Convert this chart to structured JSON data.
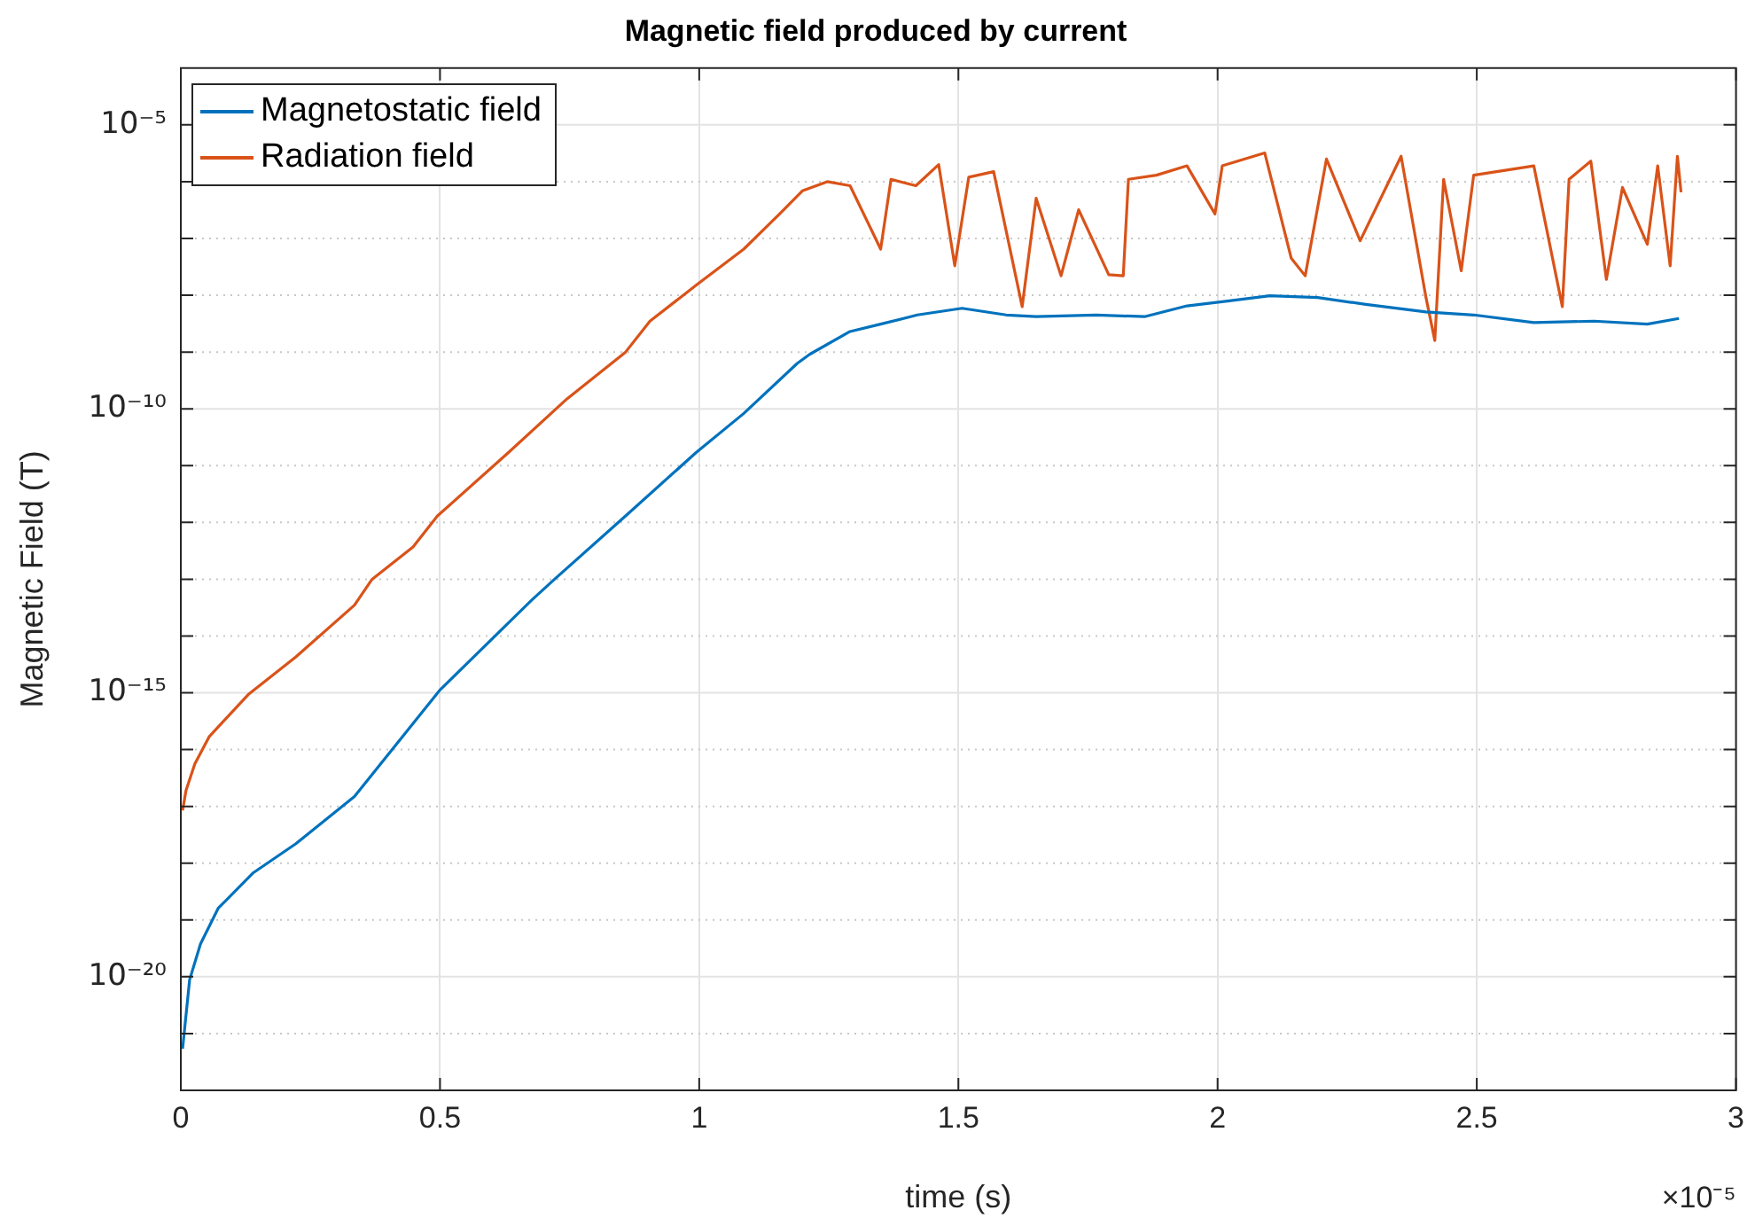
{
  "chart_data": {
    "type": "line",
    "title": "Magnetic field produced by current",
    "xlabel": "time (s)",
    "ylabel": "Magnetic Field (T)",
    "annotations": [
      "×10⁻⁵"
    ],
    "xlim": [
      0,
      3
    ],
    "xticks": [
      0,
      0.5,
      1,
      1.5,
      2,
      2.5,
      3
    ],
    "ylim": [
      1e-22,
      0.0001
    ],
    "yticks": [
      {
        "value": 1e-21,
        "label": null
      },
      {
        "value": 1e-20,
        "label": "10⁻²⁰"
      },
      {
        "value": 1e-19,
        "label": null
      },
      {
        "value": 1e-18,
        "label": null
      },
      {
        "value": 1e-17,
        "label": null
      },
      {
        "value": 1e-16,
        "label": null
      },
      {
        "value": 1e-15,
        "label": "10⁻¹⁵"
      },
      {
        "value": 1e-14,
        "label": null
      },
      {
        "value": 1e-13,
        "label": null
      },
      {
        "value": 1e-12,
        "label": null
      },
      {
        "value": 1e-11,
        "label": null
      },
      {
        "value": 1e-10,
        "label": "10⁻¹⁰"
      },
      {
        "value": 1e-09,
        "label": null
      },
      {
        "value": 1e-08,
        "label": null
      },
      {
        "value": 1e-07,
        "label": null
      },
      {
        "value": 1e-06,
        "label": null
      },
      {
        "value": 1e-05,
        "label": "10⁻⁵"
      }
    ],
    "log": "y",
    "grid": true,
    "legend": "top left",
    "marker": "none",
    "line_style": "solid",
    "series": [
      {
        "name": "Magnetostatic field",
        "color": "#0072bd",
        "x": [
          0.0034,
          0.017,
          0.038,
          0.072,
          0.14,
          0.222,
          0.335,
          0.499,
          0.677,
          0.721,
          0.858,
          0.994,
          1.086,
          1.189,
          1.213,
          1.291,
          1.35,
          1.421,
          1.507,
          1.592,
          1.65,
          1.766,
          1.859,
          1.941,
          2.019,
          2.101,
          2.193,
          2.286,
          2.402,
          2.494,
          2.61,
          2.726,
          2.829,
          2.89
        ],
        "values": [
          5.4e-22,
          8.9e-21,
          3.8e-20,
          1.6e-19,
          6.8e-19,
          2.2e-18,
          1.5e-17,
          1.1e-15,
          4.3e-14,
          1e-13,
          1.3e-12,
          1.7e-11,
          8.3e-11,
          6.3e-10,
          9.1e-10,
          2.3e-09,
          3.1e-09,
          4.5e-09,
          5.9e-09,
          4.5e-09,
          4.2e-09,
          4.5e-09,
          4.2e-09,
          6.5e-09,
          7.9e-09,
          9.8e-09,
          9.1e-09,
          6.9e-09,
          5.1e-09,
          4.5e-09,
          3.3e-09,
          3.5e-09,
          3.1e-09,
          3.9e-09
        ]
      },
      {
        "name": "Radiation field",
        "color": "#d95319",
        "x": [
          0.0034,
          0.01,
          0.027,
          0.055,
          0.13,
          0.222,
          0.335,
          0.369,
          0.448,
          0.495,
          0.632,
          0.745,
          0.858,
          0.905,
          0.994,
          1.086,
          1.155,
          1.199,
          1.247,
          1.291,
          1.35,
          1.37,
          1.418,
          1.462,
          1.493,
          1.52,
          1.568,
          1.623,
          1.65,
          1.698,
          1.732,
          1.79,
          1.818,
          1.828,
          1.882,
          1.941,
          1.995,
          2.009,
          2.091,
          2.142,
          2.169,
          2.21,
          2.275,
          2.354,
          2.402,
          2.419,
          2.436,
          2.47,
          2.494,
          2.61,
          2.665,
          2.678,
          2.72,
          2.75,
          2.781,
          2.829,
          2.849,
          2.873,
          2.887,
          2.894
        ],
        "values": [
          8.5e-18,
          1.9e-17,
          5.6e-17,
          1.7e-16,
          9.3e-16,
          4.3e-15,
          3.5e-14,
          1e-13,
          3.7e-13,
          1.3e-12,
          1.7e-11,
          1.5e-10,
          1e-09,
          3.5e-09,
          1.5e-08,
          6.5e-08,
          2.7e-07,
          6.9e-07,
          1e-06,
          8.5e-07,
          6.5e-08,
          1.1e-06,
          8.5e-07,
          2e-06,
          3.3e-08,
          1.2e-06,
          1.5e-06,
          6.3e-09,
          5.1e-07,
          2.2e-08,
          3.2e-07,
          2.3e-08,
          2.2e-08,
          1.1e-06,
          1.3e-06,
          1.9e-06,
          2.7e-07,
          1.9e-06,
          3.2e-06,
          4.5e-08,
          2.2e-08,
          2.5e-06,
          9.1e-08,
          2.8e-06,
          9.1e-09,
          1.6e-09,
          1.1e-06,
          2.7e-08,
          1.3e-06,
          1.9e-06,
          6.3e-09,
          1.1e-06,
          2.3e-06,
          1.9e-08,
          7.9e-07,
          7.9e-08,
          1.9e-06,
          3.3e-08,
          2.8e-06,
          6.5e-07
        ]
      }
    ]
  }
}
